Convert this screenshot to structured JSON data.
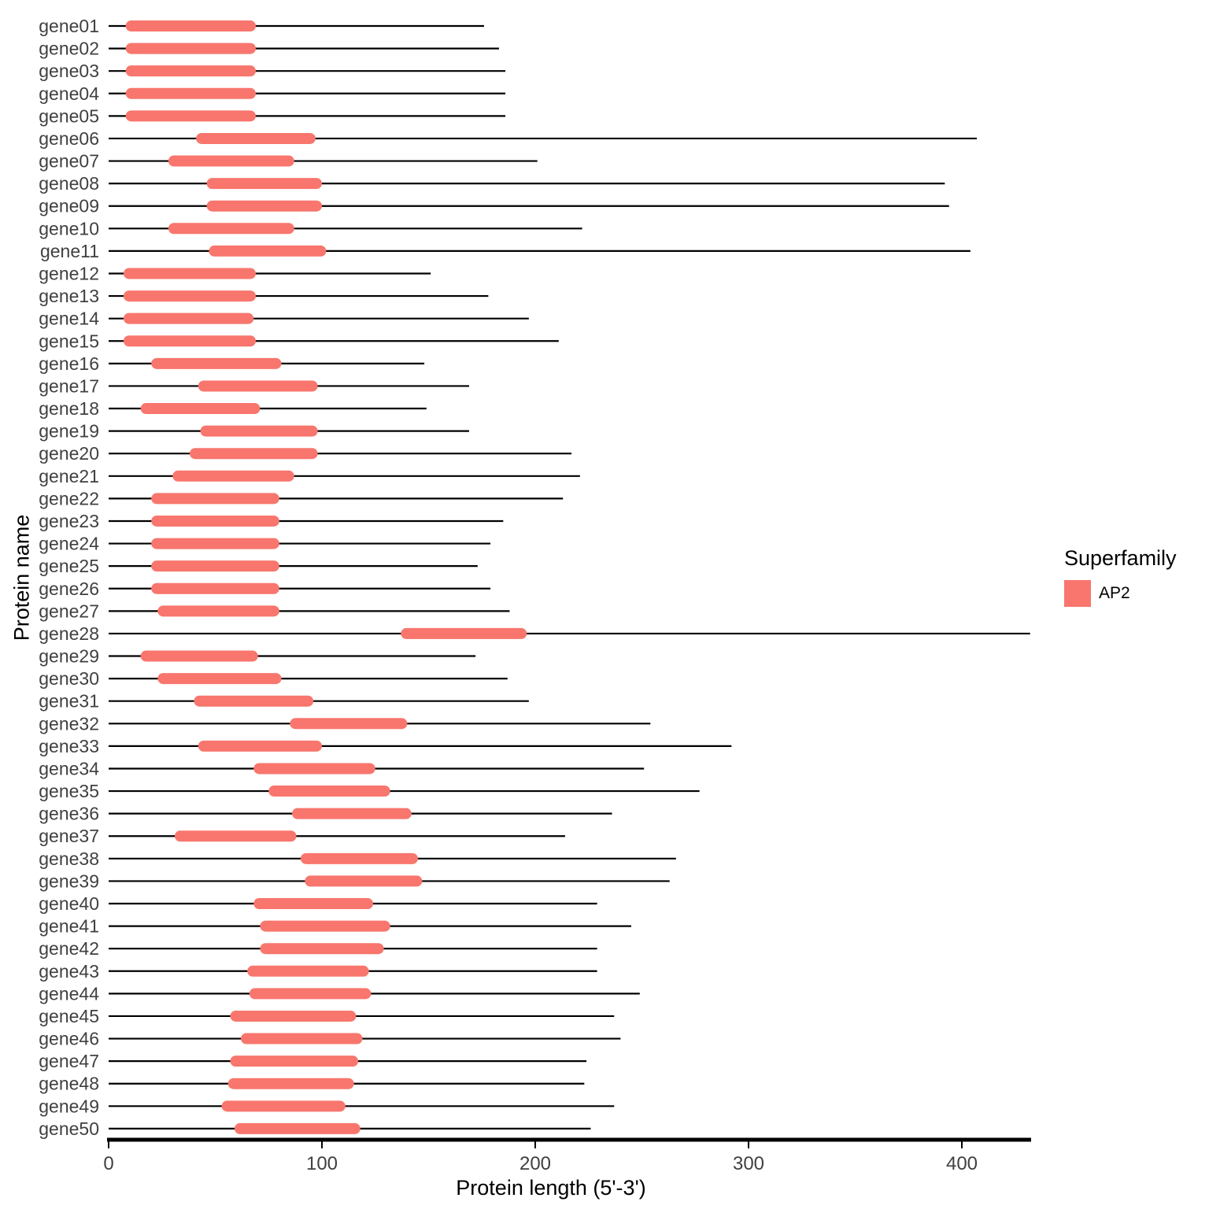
{
  "chart_data": {
    "type": "bar",
    "subtype": "protein-domain-plot",
    "title": "",
    "xlabel": "Protein length (5'-3')",
    "ylabel": "Protein name",
    "x_ticks": [
      0,
      100,
      200,
      300,
      400
    ],
    "xlim": [
      0,
      432
    ],
    "grid": false,
    "legend": {
      "position": "right",
      "title": "Superfamily",
      "items": [
        {
          "label": "AP2",
          "color": "#F8766D"
        }
      ]
    },
    "colors": {
      "domain": "#F8766D",
      "backbone": "#000000",
      "axis": "#000000",
      "label_text": "#404040"
    },
    "genes": [
      {
        "name": "gene01",
        "length": 176,
        "domain_start": 8,
        "domain_end": 69
      },
      {
        "name": "gene02",
        "length": 183,
        "domain_start": 8,
        "domain_end": 69
      },
      {
        "name": "gene03",
        "length": 186,
        "domain_start": 8,
        "domain_end": 69
      },
      {
        "name": "gene04",
        "length": 186,
        "domain_start": 8,
        "domain_end": 69
      },
      {
        "name": "gene05",
        "length": 186,
        "domain_start": 8,
        "domain_end": 69
      },
      {
        "name": "gene06",
        "length": 407,
        "domain_start": 41,
        "domain_end": 97
      },
      {
        "name": "gene07",
        "length": 201,
        "domain_start": 28,
        "domain_end": 87
      },
      {
        "name": "gene08",
        "length": 392,
        "domain_start": 46,
        "domain_end": 100
      },
      {
        "name": "gene09",
        "length": 394,
        "domain_start": 46,
        "domain_end": 100
      },
      {
        "name": "gene10",
        "length": 222,
        "domain_start": 28,
        "domain_end": 87
      },
      {
        "name": "gene11",
        "length": 404,
        "domain_start": 47,
        "domain_end": 102
      },
      {
        "name": "gene12",
        "length": 151,
        "domain_start": 7,
        "domain_end": 69
      },
      {
        "name": "gene13",
        "length": 178,
        "domain_start": 7,
        "domain_end": 69
      },
      {
        "name": "gene14",
        "length": 197,
        "domain_start": 7,
        "domain_end": 68
      },
      {
        "name": "gene15",
        "length": 211,
        "domain_start": 7,
        "domain_end": 69
      },
      {
        "name": "gene16",
        "length": 148,
        "domain_start": 20,
        "domain_end": 81
      },
      {
        "name": "gene17",
        "length": 169,
        "domain_start": 42,
        "domain_end": 98
      },
      {
        "name": "gene18",
        "length": 149,
        "domain_start": 15,
        "domain_end": 71
      },
      {
        "name": "gene19",
        "length": 169,
        "domain_start": 43,
        "domain_end": 98
      },
      {
        "name": "gene20",
        "length": 217,
        "domain_start": 38,
        "domain_end": 98
      },
      {
        "name": "gene21",
        "length": 221,
        "domain_start": 30,
        "domain_end": 87
      },
      {
        "name": "gene22",
        "length": 213,
        "domain_start": 20,
        "domain_end": 80
      },
      {
        "name": "gene23",
        "length": 185,
        "domain_start": 20,
        "domain_end": 80
      },
      {
        "name": "gene24",
        "length": 179,
        "domain_start": 20,
        "domain_end": 80
      },
      {
        "name": "gene25",
        "length": 173,
        "domain_start": 20,
        "domain_end": 80
      },
      {
        "name": "gene26",
        "length": 179,
        "domain_start": 20,
        "domain_end": 80
      },
      {
        "name": "gene27",
        "length": 188,
        "domain_start": 23,
        "domain_end": 80
      },
      {
        "name": "gene28",
        "length": 432,
        "domain_start": 137,
        "domain_end": 196
      },
      {
        "name": "gene29",
        "length": 172,
        "domain_start": 15,
        "domain_end": 70
      },
      {
        "name": "gene30",
        "length": 187,
        "domain_start": 23,
        "domain_end": 81
      },
      {
        "name": "gene31",
        "length": 197,
        "domain_start": 40,
        "domain_end": 96
      },
      {
        "name": "gene32",
        "length": 254,
        "domain_start": 85,
        "domain_end": 140
      },
      {
        "name": "gene33",
        "length": 292,
        "domain_start": 42,
        "domain_end": 100
      },
      {
        "name": "gene34",
        "length": 251,
        "domain_start": 68,
        "domain_end": 125
      },
      {
        "name": "gene35",
        "length": 277,
        "domain_start": 75,
        "domain_end": 132
      },
      {
        "name": "gene36",
        "length": 236,
        "domain_start": 86,
        "domain_end": 142
      },
      {
        "name": "gene37",
        "length": 214,
        "domain_start": 31,
        "domain_end": 88
      },
      {
        "name": "gene38",
        "length": 266,
        "domain_start": 90,
        "domain_end": 145
      },
      {
        "name": "gene39",
        "length": 263,
        "domain_start": 92,
        "domain_end": 147
      },
      {
        "name": "gene40",
        "length": 229,
        "domain_start": 68,
        "domain_end": 124
      },
      {
        "name": "gene41",
        "length": 245,
        "domain_start": 71,
        "domain_end": 132
      },
      {
        "name": "gene42",
        "length": 229,
        "domain_start": 71,
        "domain_end": 129
      },
      {
        "name": "gene43",
        "length": 229,
        "domain_start": 65,
        "domain_end": 122
      },
      {
        "name": "gene44",
        "length": 249,
        "domain_start": 66,
        "domain_end": 123
      },
      {
        "name": "gene45",
        "length": 237,
        "domain_start": 57,
        "domain_end": 116
      },
      {
        "name": "gene46",
        "length": 240,
        "domain_start": 62,
        "domain_end": 119
      },
      {
        "name": "gene47",
        "length": 224,
        "domain_start": 57,
        "domain_end": 117
      },
      {
        "name": "gene48",
        "length": 223,
        "domain_start": 56,
        "domain_end": 115
      },
      {
        "name": "gene49",
        "length": 237,
        "domain_start": 53,
        "domain_end": 111
      },
      {
        "name": "gene50",
        "length": 226,
        "domain_start": 59,
        "domain_end": 118
      }
    ]
  }
}
